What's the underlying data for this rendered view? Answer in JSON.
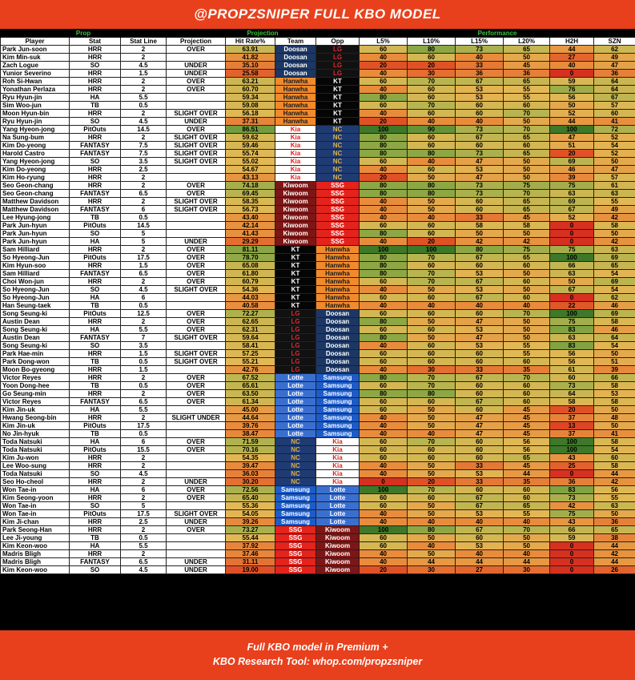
{
  "header": {
    "title": "@PROPZSNIPER FULL KBO MODEL"
  },
  "table": {
    "groups": [
      "Prop",
      "Projection",
      "Performance"
    ],
    "columns": [
      "Player",
      "Stat",
      "Stat Line",
      "Projection",
      "Hit Rate%",
      "Team",
      "Opp",
      "L5%",
      "L10%",
      "L15%",
      "L20%",
      "H2H",
      "SZN"
    ],
    "team_styles": {
      "Doosan": {
        "bg": "#1c3764",
        "fg": "#ffffff"
      },
      "LG": {
        "bg": "#111111",
        "fg": "#e8262d"
      },
      "Hanwha": {
        "bg": "#f08a2c",
        "fg": "#1a1a1a"
      },
      "KT": {
        "bg": "#050505",
        "fg": "#ffffff"
      },
      "Kia": {
        "bg": "#ffffff",
        "fg": "#e0201b"
      },
      "NC": {
        "bg": "#1f3b73",
        "fg": "#d9b24c"
      },
      "Kiwoom": {
        "bg": "#7d1616",
        "fg": "#ffffff"
      },
      "SSG": {
        "bg": "#e3231c",
        "fg": "#ffffff"
      },
      "Lotte": {
        "bg": "#3a6fd0",
        "fg": "#ffffff"
      },
      "Samsung": {
        "bg": "#1d5cc8",
        "fg": "#ffffff"
      }
    },
    "rows": [
      [
        "Park Jun-soon",
        "HRR",
        2,
        "OVER",
        "63.91",
        "Doosan",
        "LG",
        60,
        80,
        73,
        65,
        44,
        62
      ],
      [
        "Kim Min-suk",
        "HRR",
        2,
        null,
        "41.82",
        "Doosan",
        "LG",
        40,
        60,
        40,
        50,
        27,
        49
      ],
      [
        "Zach Logue",
        "SO",
        4.5,
        "UNDER",
        "35.10",
        "Doosan",
        "LG",
        20,
        20,
        33,
        45,
        40,
        47
      ],
      [
        "Yunior Severino",
        "HRR",
        1.5,
        "UNDER",
        "25.58",
        "Doosan",
        "LG",
        40,
        30,
        36,
        36,
        0,
        36
      ],
      [
        "Roh Si-Hwan",
        "HRR",
        2,
        "OVER",
        "63.21",
        "Hanwha",
        "KT",
        60,
        70,
        67,
        65,
        59,
        64
      ],
      [
        "Yonathan Perlaza",
        "HRR",
        2,
        "OVER",
        "60.70",
        "Hanwha",
        "KT",
        40,
        60,
        53,
        55,
        76,
        64
      ],
      [
        "Ryu Hyun-jin",
        "HA",
        5.5,
        null,
        "59.34",
        "Hanwha",
        "KT",
        80,
        60,
        53,
        55,
        56,
        67
      ],
      [
        "Sim Woo-jun",
        "TB",
        0.5,
        null,
        "59.08",
        "Hanwha",
        "KT",
        60,
        70,
        60,
        60,
        50,
        57
      ],
      [
        "Moon Hyun-bin",
        "HRR",
        2,
        "SLIGHT OVER",
        "56.18",
        "Hanwha",
        "KT",
        40,
        60,
        60,
        70,
        52,
        60
      ],
      [
        "Ryu Hyun-jin",
        "SO",
        4.5,
        "UNDER",
        "37.31",
        "Hanwha",
        "KT",
        20,
        40,
        40,
        50,
        44,
        41
      ],
      [
        "Yang Hyeon-jong",
        "PitOuts",
        14.5,
        "OVER",
        "86.51",
        "Kia",
        "NC",
        100,
        90,
        73,
        70,
        100,
        72
      ],
      [
        "Na Sung-bum",
        "HRR",
        2,
        "SLIGHT OVER",
        "59.62",
        "Kia",
        "NC",
        80,
        60,
        67,
        65,
        47,
        52
      ],
      [
        "Kim Do-yeong",
        "FANTASY",
        7.5,
        "SLIGHT OVER",
        "59.46",
        "Kia",
        "NC",
        80,
        60,
        60,
        60,
        51,
        54
      ],
      [
        "Harold Castro",
        "FANTASY",
        7.5,
        "SLIGHT OVER",
        "55.74",
        "Kia",
        "NC",
        80,
        80,
        73,
        65,
        20,
        52
      ],
      [
        "Yang Hyeon-jong",
        "SO",
        3.5,
        "SLIGHT OVER",
        "55.02",
        "Kia",
        "NC",
        60,
        40,
        47,
        50,
        69,
        50
      ],
      [
        "Kim Do-yeong",
        "HRR",
        2.5,
        null,
        "54.67",
        "Kia",
        "NC",
        40,
        60,
        53,
        50,
        46,
        47
      ],
      [
        "Kim Ho-ryung",
        "HRR",
        2,
        null,
        "43.13",
        "Kia",
        "NC",
        20,
        50,
        47,
        50,
        39,
        57
      ],
      [
        "Seo Geon-chang",
        "HRR",
        2,
        "OVER",
        "74.18",
        "Kiwoom",
        "SSG",
        80,
        80,
        73,
        75,
        75,
        61
      ],
      [
        "Seo Geon-chang",
        "FANTASY",
        6.5,
        "OVER",
        "69.45",
        "Kiwoom",
        "SSG",
        80,
        80,
        73,
        70,
        63,
        63
      ],
      [
        "Matthew Davidson",
        "HRR",
        2,
        "SLIGHT OVER",
        "58.35",
        "Kiwoom",
        "SSG",
        40,
        50,
        60,
        65,
        69,
        55
      ],
      [
        "Matthew Davidson",
        "FANTASY",
        6,
        "SLIGHT OVER",
        "56.73",
        "Kiwoom",
        "SSG",
        40,
        50,
        60,
        65,
        67,
        49
      ],
      [
        "Lee Hyung-jong",
        "TB",
        0.5,
        null,
        "43.40",
        "Kiwoom",
        "SSG",
        40,
        40,
        33,
        45,
        52,
        42
      ],
      [
        "Park Jun-hyun",
        "PitOuts",
        14.5,
        null,
        "42.14",
        "Kiwoom",
        "SSG",
        60,
        60,
        58,
        58,
        0,
        58
      ],
      [
        "Park Jun-hyun",
        "SO",
        5,
        null,
        "41.43",
        "Kiwoom",
        "SSG",
        80,
        60,
        50,
        50,
        0,
        50
      ],
      [
        "Park Jun-hyun",
        "HA",
        5,
        "UNDER",
        "29.29",
        "Kiwoom",
        "SSG",
        40,
        20,
        42,
        42,
        0,
        42
      ],
      [
        "Sam Hilliard",
        "HRR",
        2,
        "OVER",
        "81.11",
        "KT",
        "Hanwha",
        100,
        100,
        80,
        75,
        75,
        63
      ],
      [
        "So Hyeong-Jun",
        "PitOuts",
        17.5,
        "OVER",
        "78.70",
        "KT",
        "Hanwha",
        80,
        70,
        67,
        65,
        100,
        69
      ],
      [
        "Kim Hyun-soo",
        "HRR",
        1.5,
        "OVER",
        "65.08",
        "KT",
        "Hanwha",
        80,
        60,
        60,
        60,
        66,
        65
      ],
      [
        "Sam Hilliard",
        "FANTASY",
        6.5,
        "OVER",
        "61.80",
        "KT",
        "Hanwha",
        80,
        70,
        53,
        50,
        63,
        54
      ],
      [
        "Choi Won-jun",
        "HRR",
        2,
        "OVER",
        "60.79",
        "KT",
        "Hanwha",
        60,
        70,
        67,
        60,
        50,
        69
      ],
      [
        "So Hyeong-Jun",
        "SO",
        4.5,
        "SLIGHT OVER",
        "54.36",
        "KT",
        "Hanwha",
        40,
        50,
        53,
        50,
        67,
        54
      ],
      [
        "So Hyeong-Jun",
        "HA",
        6,
        null,
        "44.03",
        "KT",
        "Hanwha",
        60,
        60,
        67,
        60,
        0,
        62
      ],
      [
        "Han Seung-taek",
        "TB",
        0.5,
        null,
        "40.58",
        "KT",
        "Hanwha",
        40,
        40,
        40,
        40,
        22,
        46
      ],
      [
        "Song Seung-ki",
        "PitOuts",
        12.5,
        "OVER",
        "72.27",
        "LG",
        "Doosan",
        60,
        60,
        60,
        70,
        100,
        69
      ],
      [
        "Austin Dean",
        "HRR",
        2,
        "OVER",
        "62.65",
        "LG",
        "Doosan",
        80,
        50,
        47,
        50,
        75,
        58
      ],
      [
        "Song Seung-ki",
        "HA",
        5.5,
        "OVER",
        "62.31",
        "LG",
        "Doosan",
        60,
        60,
        53,
        50,
        83,
        46
      ],
      [
        "Austin Dean",
        "FANTASY",
        7,
        "SLIGHT OVER",
        "59.64",
        "LG",
        "Doosan",
        80,
        50,
        47,
        50,
        63,
        64
      ],
      [
        "Song Seung-ki",
        "SO",
        3.5,
        null,
        "58.41",
        "LG",
        "Doosan",
        40,
        60,
        53,
        55,
        83,
        54
      ],
      [
        "Park Hae-min",
        "HRR",
        1.5,
        "SLIGHT OVER",
        "57.25",
        "LG",
        "Doosan",
        60,
        60,
        60,
        55,
        56,
        50
      ],
      [
        "Park Dong-won",
        "TB",
        0.5,
        "SLIGHT OVER",
        "55.21",
        "LG",
        "Doosan",
        60,
        60,
        60,
        60,
        56,
        51
      ],
      [
        "Moon Bo-gyeong",
        "HRR",
        1.5,
        null,
        "42.76",
        "LG",
        "Doosan",
        40,
        30,
        33,
        35,
        61,
        39
      ],
      [
        "Victor Reyes",
        "HRR",
        2,
        "OVER",
        "67.52",
        "Lotte",
        "Samsung",
        80,
        70,
        67,
        70,
        60,
        66
      ],
      [
        "Yoon Dong-hee",
        "TB",
        0.5,
        "OVER",
        "65.61",
        "Lotte",
        "Samsung",
        60,
        70,
        60,
        60,
        73,
        58
      ],
      [
        "Go Seung-min",
        "HRR",
        2,
        "OVER",
        "63.50",
        "Lotte",
        "Samsung",
        80,
        80,
        60,
        60,
        64,
        53
      ],
      [
        "Victor Reyes",
        "FANTASY",
        6.5,
        "OVER",
        "61.34",
        "Lotte",
        "Samsung",
        60,
        60,
        67,
        60,
        58,
        58
      ],
      [
        "Kim Jin-uk",
        "HA",
        5.5,
        null,
        "45.00",
        "Lotte",
        "Samsung",
        60,
        50,
        60,
        45,
        20,
        50
      ],
      [
        "Hwang Seong-bin",
        "HRR",
        2,
        "SLIGHT UNDER",
        "44.64",
        "Lotte",
        "Samsung",
        40,
        50,
        47,
        45,
        37,
        48
      ],
      [
        "Kim Jin-uk",
        "PitOuts",
        17.5,
        null,
        "39.76",
        "Lotte",
        "Samsung",
        40,
        50,
        47,
        45,
        13,
        50
      ],
      [
        "No Jin-hyuk",
        "TB",
        0.5,
        null,
        "38.47",
        "Lotte",
        "Samsung",
        40,
        40,
        47,
        45,
        37,
        41
      ],
      [
        "Toda Natsuki",
        "HA",
        6,
        "OVER",
        "71.59",
        "NC",
        "Kia",
        60,
        70,
        60,
        56,
        100,
        58
      ],
      [
        "Toda Natsuki",
        "PitOuts",
        15.5,
        "OVER",
        "70.16",
        "NC",
        "Kia",
        60,
        60,
        60,
        56,
        100,
        54
      ],
      [
        "Kim Ju-won",
        "HRR",
        2,
        null,
        "54.35",
        "NC",
        "Kia",
        60,
        60,
        60,
        65,
        43,
        60
      ],
      [
        "Lee Woo-sung",
        "HRR",
        2,
        null,
        "39.47",
        "NC",
        "Kia",
        40,
        50,
        33,
        45,
        25,
        58
      ],
      [
        "Toda Natsuki",
        "SO",
        4.5,
        null,
        "36.03",
        "NC",
        "Kia",
        40,
        50,
        53,
        44,
        0,
        44
      ],
      [
        "Seo Ho-cheol",
        "HRR",
        2,
        "UNDER",
        "30.20",
        "NC",
        "Kia",
        0,
        20,
        33,
        35,
        36,
        42
      ],
      [
        "Won Tae-in",
        "HA",
        6,
        "OVER",
        "72.56",
        "Samsung",
        "Lotte",
        100,
        70,
        60,
        60,
        83,
        56
      ],
      [
        "Kim Seong-yoon",
        "HRR",
        2,
        "OVER",
        "65.40",
        "Samsung",
        "Lotte",
        60,
        60,
        67,
        60,
        73,
        55
      ],
      [
        "Won Tae-in",
        "SO",
        5,
        null,
        "55.36",
        "Samsung",
        "Lotte",
        60,
        50,
        67,
        65,
        42,
        63
      ],
      [
        "Won Tae-in",
        "PitOuts",
        17.5,
        "SLIGHT OVER",
        "54.05",
        "Samsung",
        "Lotte",
        40,
        50,
        53,
        55,
        75,
        50
      ],
      [
        "Kim Ji-chan",
        "HRR",
        2.5,
        "UNDER",
        "39.26",
        "Samsung",
        "Lotte",
        40,
        40,
        40,
        40,
        43,
        36
      ],
      [
        "Park Seong-Han",
        "HRR",
        2,
        "OVER",
        "73.27",
        "SSG",
        "Kiwoom",
        100,
        80,
        67,
        70,
        66,
        65
      ],
      [
        "Lee Ji-young",
        "TB",
        0.5,
        null,
        "55.44",
        "SSG",
        "Kiwoom",
        60,
        50,
        60,
        50,
        59,
        38
      ],
      [
        "Kim Keon-woo",
        "HA",
        5.5,
        null,
        "37.92",
        "SSG",
        "Kiwoom",
        60,
        40,
        53,
        50,
        0,
        44
      ],
      [
        "Madris Bligh",
        "HRR",
        2,
        null,
        "37.46",
        "SSG",
        "Kiwoom",
        40,
        50,
        40,
        40,
        0,
        42
      ],
      [
        "Madris Bligh",
        "FANTASY",
        6.5,
        "UNDER",
        "31.11",
        "SSG",
        "Kiwoom",
        40,
        44,
        44,
        44,
        0,
        44
      ],
      [
        "Kim Keon-woo",
        "SO",
        4.5,
        "UNDER",
        "19.00",
        "SSG",
        "Kiwoom",
        20,
        30,
        27,
        30,
        0,
        26
      ]
    ]
  },
  "footer": {
    "lines": [
      "Full KBO model in Premium +",
      "KBO Research Tool: whop.com/propzsniper"
    ]
  }
}
